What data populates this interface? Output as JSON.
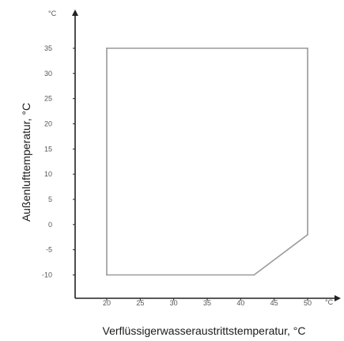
{
  "chart_data": {
    "type": "area",
    "title": "",
    "xlabel": "Verflüssigerwasseraustrittstemperatur, °C",
    "ylabel": "Außenlufttemperatur, °C",
    "x_unit": "°C",
    "y_unit": "°C",
    "x_ticks": [
      20,
      25,
      30,
      35,
      40,
      45,
      50
    ],
    "y_ticks": [
      35,
      30,
      25,
      20,
      15,
      10,
      5,
      0,
      -5,
      -10
    ],
    "xlim": [
      15,
      55
    ],
    "ylim": [
      -14,
      40
    ],
    "grid": false,
    "series": [
      {
        "type": "polygon",
        "points": [
          {
            "x": 20,
            "y": 35
          },
          {
            "x": 50,
            "y": 35
          },
          {
            "x": 50,
            "y": -2
          },
          {
            "x": 42,
            "y": -10
          },
          {
            "x": 20,
            "y": -10
          }
        ]
      }
    ],
    "colors": {
      "axis": "#222222",
      "outline": "#999999",
      "text": "#555555"
    }
  }
}
